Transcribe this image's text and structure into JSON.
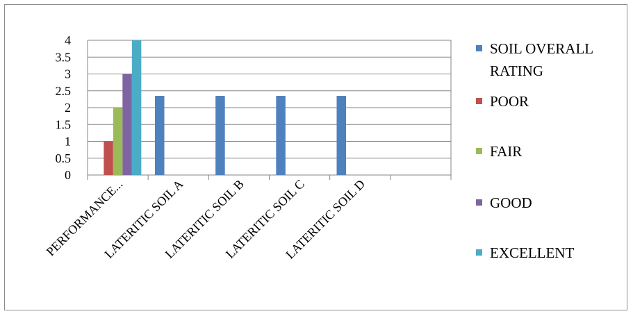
{
  "chart_data": {
    "type": "bar",
    "categories": [
      "PERFORMANCE...",
      "LATERITIC SOIL A",
      "LATERITIC SOIL B",
      "LATERITIC SOIL C",
      "LATERITIC SOIL D",
      ""
    ],
    "ylim": [
      0,
      4
    ],
    "yticks": [
      "0",
      "0.5",
      "1",
      "1.5",
      "2",
      "2.5",
      "3",
      "3.5",
      "4"
    ],
    "grid": true,
    "legend_position": "right",
    "series": [
      {
        "name": "SOIL OVERALL RATING",
        "color": "#4f81bd",
        "values": [
          null,
          2.35,
          2.35,
          2.35,
          2.35,
          null
        ]
      },
      {
        "name": "POOR",
        "color": "#c0504d",
        "values": [
          1,
          null,
          null,
          null,
          null,
          null
        ]
      },
      {
        "name": "FAIR",
        "color": "#9bbb59",
        "values": [
          2,
          null,
          null,
          null,
          null,
          null
        ]
      },
      {
        "name": "GOOD",
        "color": "#8064a2",
        "values": [
          3,
          null,
          null,
          null,
          null,
          null
        ]
      },
      {
        "name": "EXCELLENT",
        "color": "#4bacc6",
        "values": [
          4,
          null,
          null,
          null,
          null,
          null
        ]
      }
    ]
  }
}
